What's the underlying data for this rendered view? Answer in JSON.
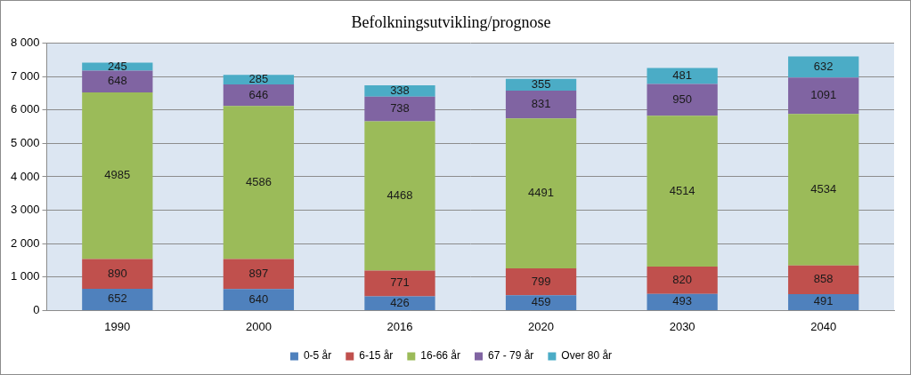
{
  "chart_data": {
    "type": "bar",
    "title": "Befolkningsutvikling/prognose",
    "categories": [
      "1990",
      "2000",
      "2016",
      "2020",
      "2030",
      "2040"
    ],
    "series": [
      {
        "name": "0-5 år",
        "color": "#4f81bd",
        "values": [
          652,
          640,
          426,
          459,
          493,
          491
        ]
      },
      {
        "name": "6-15 år",
        "color": "#c0504d",
        "values": [
          890,
          897,
          771,
          799,
          820,
          858
        ]
      },
      {
        "name": "16-66 år",
        "color": "#9bbb59",
        "values": [
          4985,
          4586,
          4468,
          4491,
          4514,
          4534
        ]
      },
      {
        "name": "67 - 79 år",
        "color": "#8064a2",
        "values": [
          648,
          646,
          738,
          831,
          950,
          1091
        ]
      },
      {
        "name": "Over 80 år",
        "color": "#4bacc6",
        "values": [
          245,
          285,
          338,
          355,
          481,
          632
        ]
      }
    ],
    "ylim": [
      0,
      8000
    ],
    "yticks": [
      0,
      {
        "value": 1000,
        "label": "1 000"
      },
      {
        "value": 2000,
        "label": "2 000"
      },
      {
        "value": 3000,
        "label": "3 000"
      },
      {
        "value": 4000,
        "label": "4 000"
      },
      {
        "value": 5000,
        "label": "5 000"
      },
      {
        "value": 6000,
        "label": "6 000"
      },
      {
        "value": 7000,
        "label": "7 000"
      },
      {
        "value": 8000,
        "label": "8 000"
      }
    ],
    "stacked": true,
    "data_labels": true,
    "grid": true,
    "legend": "bottom"
  }
}
